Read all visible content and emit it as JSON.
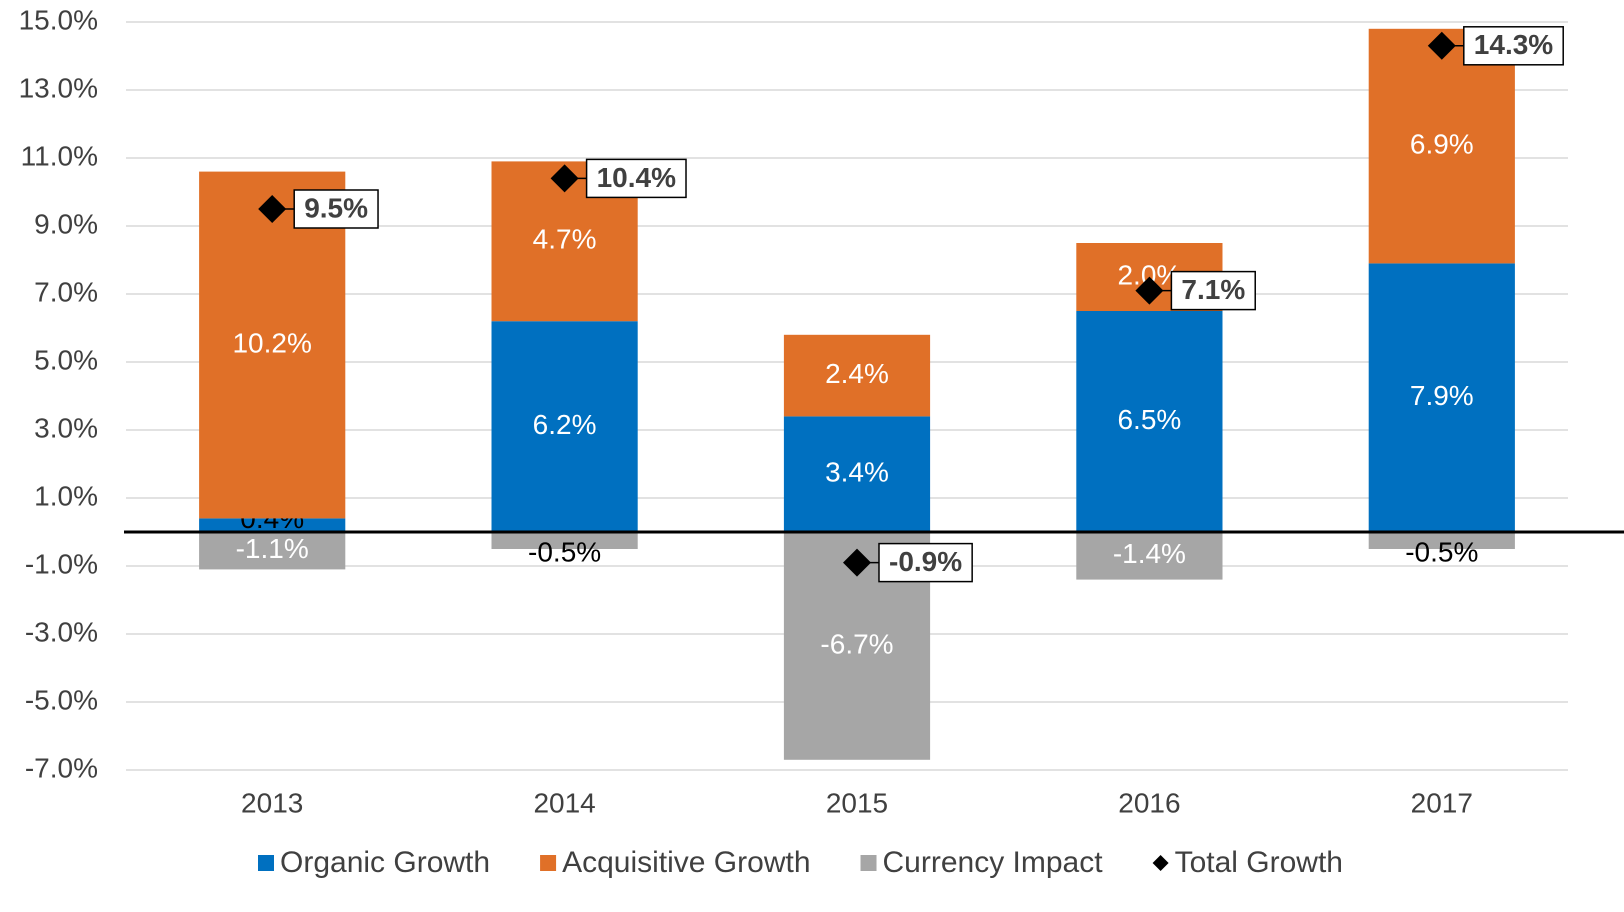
{
  "chart_data": {
    "type": "bar",
    "stacked": true,
    "categories": [
      "2013",
      "2014",
      "2015",
      "2016",
      "2017"
    ],
    "series": [
      {
        "name": "Organic Growth",
        "color": "#0070c0",
        "values": [
          0.4,
          6.2,
          3.4,
          6.5,
          7.9
        ],
        "value_labels": [
          "0.4%",
          "6.2%",
          "3.4%",
          "6.5%",
          "7.9%"
        ]
      },
      {
        "name": "Acquisitive Growth",
        "color": "#e07028",
        "values": [
          10.2,
          4.7,
          2.4,
          2.0,
          6.9
        ],
        "value_labels": [
          "10.2%",
          "4.7%",
          "2.4%",
          "2.0%",
          "6.9%"
        ]
      },
      {
        "name": "Currency Impact",
        "color": "#a6a6a6",
        "values": [
          -1.1,
          -0.5,
          -6.7,
          -1.4,
          -0.5
        ],
        "value_labels": [
          "-1.1%",
          "-0.5%",
          "-6.7%",
          "-1.4%",
          "-0.5%"
        ]
      },
      {
        "name": "Total Growth",
        "type": "scatter",
        "color": "#000000",
        "values": [
          9.5,
          10.4,
          -0.9,
          7.1,
          14.3
        ],
        "value_labels": [
          "9.5%",
          "10.4%",
          "-0.9%",
          "7.1%",
          "14.3%"
        ]
      }
    ],
    "ylim": [
      -7,
      15
    ],
    "yticks": [
      {
        "value": -7,
        "label": "-7.0%"
      },
      {
        "value": -5,
        "label": "-5.0%"
      },
      {
        "value": -3,
        "label": "-3.0%"
      },
      {
        "value": -1,
        "label": "-1.0%"
      },
      {
        "value": 1,
        "label": "1.0%"
      },
      {
        "value": 3,
        "label": "3.0%"
      },
      {
        "value": 5,
        "label": "5.0%"
      },
      {
        "value": 7,
        "label": "7.0%"
      },
      {
        "value": 9,
        "label": "9.0%"
      },
      {
        "value": 11,
        "label": "11.0%"
      },
      {
        "value": 13,
        "label": "13.0%"
      },
      {
        "value": 15,
        "label": "15.0%"
      }
    ],
    "grid": true,
    "legend": "bottom"
  }
}
